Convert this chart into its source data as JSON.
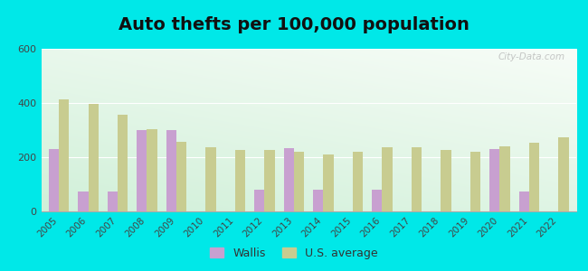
{
  "title": "Auto thefts per 100,000 population",
  "years": [
    2005,
    2006,
    2007,
    2008,
    2009,
    2010,
    2011,
    2012,
    2013,
    2014,
    2015,
    2016,
    2017,
    2018,
    2019,
    2020,
    2021,
    2022
  ],
  "wallis": [
    230,
    75,
    75,
    300,
    300,
    0,
    0,
    80,
    235,
    80,
    0,
    80,
    0,
    0,
    0,
    230,
    75,
    0
  ],
  "us_avg": [
    415,
    398,
    358,
    303,
    258,
    238,
    228,
    228,
    220,
    210,
    220,
    236,
    236,
    228,
    220,
    240,
    255,
    275
  ],
  "wallis_color": "#c8a0d0",
  "us_avg_color": "#c8cc90",
  "ylim": [
    0,
    600
  ],
  "yticks": [
    0,
    200,
    400,
    600
  ],
  "outer_bg": "#00e8e8",
  "watermark": "City-Data.com",
  "bar_width": 0.35,
  "title_fontsize": 14,
  "legend_wallis": "Wallis",
  "legend_us": "U.S. average"
}
